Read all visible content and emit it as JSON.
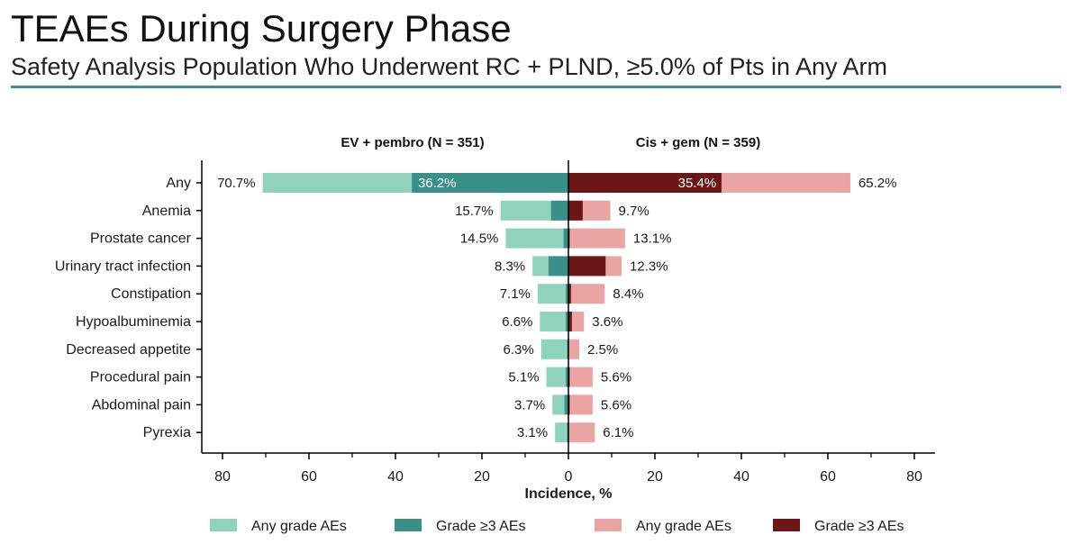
{
  "header": {
    "title": "TEAEs During Surgery Phase",
    "subtitle": "Safety Analysis Population Who Underwent RC + PLND, ≥5.0% of Pts in Any Arm"
  },
  "colors": {
    "left_any": "#8fd3bd",
    "left_g3": "#3a8f88",
    "right_any": "#eaa4a4",
    "right_g3": "#6b1717",
    "rule": "#3f8f98"
  },
  "chart_data": {
    "type": "bar",
    "orientation": "horizontal-butterfly",
    "xlabel": "Incidence, %",
    "xlim": [
      0,
      80
    ],
    "x_ticks": [
      "80",
      "60",
      "40",
      "20",
      "0",
      "20",
      "40",
      "60",
      "80"
    ],
    "arms": [
      {
        "name": "EV + pembro (N = 351)",
        "side": "left"
      },
      {
        "name": "Cis + gem (N = 359)",
        "side": "right"
      }
    ],
    "categories": [
      "Any",
      "Anemia",
      "Prostate cancer",
      "Urinary tract infection",
      "Constipation",
      "Hypoalbuminemia",
      "Decreased appetite",
      "Procedural pain",
      "Abdominal pain",
      "Pyrexia"
    ],
    "series": [
      {
        "name": "Any grade AEs",
        "arm": "EV + pembro (N = 351)",
        "values": [
          70.7,
          15.7,
          14.5,
          8.3,
          7.1,
          6.6,
          6.3,
          5.1,
          3.7,
          3.1
        ]
      },
      {
        "name": "Grade ≥3 AEs",
        "arm": "EV + pembro (N = 351)",
        "values": [
          36.2,
          4.0,
          1.1,
          4.6,
          0.6,
          0.6,
          0.3,
          0.6,
          0.9,
          0.3
        ]
      },
      {
        "name": "Any grade AEs",
        "arm": "Cis + gem (N = 359)",
        "values": [
          65.2,
          9.7,
          13.1,
          12.3,
          8.4,
          3.6,
          2.5,
          5.6,
          5.6,
          6.1
        ]
      },
      {
        "name": "Grade ≥3 AEs",
        "arm": "Cis + gem (N = 359)",
        "values": [
          35.4,
          3.3,
          0.3,
          8.6,
          0.6,
          0.8,
          0.0,
          0.3,
          0.3,
          0.0
        ]
      }
    ],
    "left_labels": [
      "70.7%",
      "15.7%",
      "14.5%",
      "8.3%",
      "7.1%",
      "6.6%",
      "6.3%",
      "5.1%",
      "3.7%",
      "3.1%"
    ],
    "right_labels": [
      "65.2%",
      "9.7%",
      "13.1%",
      "12.3%",
      "8.4%",
      "3.6%",
      "2.5%",
      "5.6%",
      "5.6%",
      "6.1%"
    ],
    "inner_labels": {
      "left": "36.2%",
      "right": "35.4%"
    },
    "legend": {
      "placement": "bottom",
      "items": [
        "Any grade AEs",
        "Grade ≥3 AEs",
        "Any grade AEs",
        "Grade ≥3 AEs"
      ]
    },
    "grid": false
  }
}
